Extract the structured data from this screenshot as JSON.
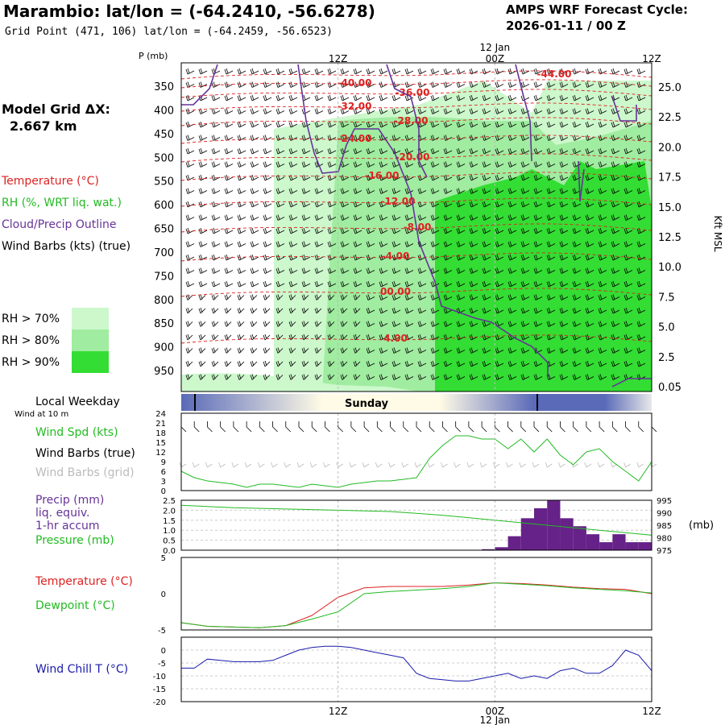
{
  "header": {
    "title": "Marambio:  lat/lon = (-64.2410, -56.6278)",
    "subtitle": "Grid Point (471, 106) lat/lon = (-64.2459, -56.6523)",
    "cycle_line1": "AMPS WRF Forecast Cycle:",
    "cycle_line2": "2026-01-11 / 00  Z"
  },
  "left_panel": {
    "grid_label": "Model Grid ΔX:",
    "grid_value": "2.667 km",
    "legend_temperature": "Temperature (°C)",
    "legend_rh": "RH (%, WRT liq. wat.)",
    "legend_cloud": "Cloud/Precip Outline",
    "legend_wind": "Wind Barbs (kts) (true)",
    "rh70": "RH > 70%",
    "rh80": "RH > 80%",
    "rh90": "RH > 90%",
    "rh_colors": [
      "#ccf8cc",
      "#a0eca0",
      "#33dd33"
    ],
    "local_weekday": "Local Weekday",
    "wind_10m": "Wind at 10 m",
    "wind_spd": "Wind Spd (kts)",
    "wind_barbs_true": "Wind Barbs (true)",
    "wind_barbs_grid": "Wind Barbs (grid)",
    "precip1": "Precip (mm)",
    "precip2": "liq. equiv.",
    "precip3": "1-hr accum",
    "pressure": "Pressure (mb)",
    "temperature2": "Temperature (°C)",
    "dewpoint": "Dewpoint (°C)",
    "windchill": "Wind Chill T (°C)"
  },
  "axes": {
    "p_label": "P (mb)",
    "time_ticks": [
      "12Z",
      "00Z",
      "12Z"
    ],
    "date_label": "12 Jan",
    "weekday": "Sunday",
    "right_axis_label": "Kft MSL",
    "pressure_unit": "(mb)"
  },
  "chart_data": [
    {
      "type": "heatmap",
      "title": "",
      "y_pressure_ticks": [
        350,
        400,
        450,
        500,
        550,
        600,
        650,
        700,
        750,
        800,
        850,
        900,
        950
      ],
      "y_height_kft_ticks": [
        "25.0",
        "22.5",
        "20.0",
        "17.5",
        "15.0",
        "12.5",
        "10.0",
        "7.5",
        "5.0",
        "2.5",
        "0.05"
      ],
      "temperature_contours": [
        {
          "label": "-44.00",
          "value": -44
        },
        {
          "label": "-40.00",
          "value": -40
        },
        {
          "label": "-36.00",
          "value": -36
        },
        {
          "label": "-32.00",
          "value": -32
        },
        {
          "label": "-28.00",
          "value": -28
        },
        {
          "label": "-24.00",
          "value": -24
        },
        {
          "label": "-20.00",
          "value": -20
        },
        {
          "label": "-16.00",
          "value": -16
        },
        {
          "label": "-12.00",
          "value": -12
        },
        {
          "label": "-8.00",
          "value": -8
        },
        {
          "label": "-4.00",
          "value": -4
        },
        {
          "label": "00.00",
          "value": 0
        },
        {
          "label": "4.00",
          "value": 4
        }
      ]
    },
    {
      "type": "line",
      "title": "Wind Spd (kts)",
      "y_ticks": [
        0,
        3,
        6,
        9,
        12,
        15,
        18,
        21,
        24
      ],
      "ylim": [
        0,
        24
      ],
      "x_hours": [
        0,
        1,
        2,
        3,
        4,
        5,
        6,
        7,
        8,
        9,
        10,
        11,
        12,
        13,
        14,
        15,
        16,
        17,
        18,
        19,
        20,
        21,
        22,
        23,
        24,
        25,
        26,
        27,
        28,
        29,
        30,
        31,
        32,
        33,
        34,
        35,
        36
      ],
      "series": [
        {
          "name": "Wind Spd (kts)",
          "color": "#22bb22",
          "values": [
            6,
            4,
            3,
            2.5,
            2,
            1,
            2,
            2,
            1.5,
            1,
            2,
            1.5,
            1,
            2,
            2.5,
            3,
            3,
            3.5,
            4,
            10,
            14,
            17,
            17,
            16,
            16,
            13,
            16,
            12,
            16,
            11,
            8,
            12,
            13,
            9,
            6,
            3,
            9
          ]
        }
      ]
    },
    {
      "type": "bar",
      "title": "Precip (mm) / Pressure (mb)",
      "y_ticks_left": [
        "0.0",
        "0.5",
        "1.0",
        "1.5",
        "2.0",
        "2.5"
      ],
      "y_ticks_right": [
        "975",
        "980",
        "985",
        "990",
        "995"
      ],
      "ylim_precip": [
        0,
        2.5
      ],
      "ylim_pressure": [
        975,
        995
      ],
      "precip_hours": [
        21,
        22,
        23,
        24,
        25,
        26,
        27,
        28,
        29,
        30,
        31,
        32,
        33,
        34,
        35,
        36
      ],
      "precip_values": [
        0.02,
        0.02,
        0.02,
        0.05,
        0.15,
        0.7,
        1.6,
        2.1,
        2.5,
        1.6,
        1.2,
        0.8,
        0.4,
        0.8,
        0.4,
        0.4
      ],
      "pressure_hours": [
        0,
        4,
        8,
        12,
        16,
        20,
        24,
        28,
        32,
        36
      ],
      "pressure_values": [
        993,
        992,
        991.5,
        991,
        990.5,
        989,
        987,
        985,
        983,
        981
      ]
    },
    {
      "type": "line",
      "title": "Temperature / Dewpoint (°C)",
      "y_ticks": [
        "5",
        "0",
        "-5"
      ],
      "ylim": [
        -5,
        5
      ],
      "x_hours": [
        0,
        2,
        4,
        6,
        8,
        10,
        12,
        14,
        16,
        18,
        20,
        22,
        24,
        26,
        28,
        30,
        32,
        34,
        36
      ],
      "series": [
        {
          "name": "Temperature (°C)",
          "color": "#dd2222",
          "values": [
            -4,
            -4.5,
            -4.6,
            -4.7,
            -4.4,
            -3,
            -0.5,
            0.8,
            1,
            1,
            1,
            1.2,
            1.5,
            1.4,
            1.2,
            0.9,
            0.7,
            0.6,
            0
          ]
        },
        {
          "name": "Dewpoint (°C)",
          "color": "#22bb22",
          "values": [
            -4,
            -4.5,
            -4.6,
            -4.7,
            -4.4,
            -3.5,
            -2.5,
            0,
            0.3,
            0.5,
            0.7,
            1,
            1.5,
            1.3,
            1.1,
            0.8,
            0.6,
            0.4,
            0.1
          ]
        }
      ]
    },
    {
      "type": "line",
      "title": "Wind Chill T (°C)",
      "y_ticks": [
        "0",
        "-5",
        "-10",
        "-15",
        "-20"
      ],
      "ylim": [
        -20,
        5
      ],
      "x_hours": [
        0,
        1,
        2,
        3,
        4,
        5,
        6,
        7,
        8,
        9,
        10,
        11,
        12,
        13,
        14,
        15,
        16,
        17,
        18,
        19,
        20,
        21,
        22,
        23,
        24,
        25,
        26,
        27,
        28,
        29,
        30,
        31,
        32,
        33,
        34,
        35,
        36
      ],
      "series": [
        {
          "name": "Wind Chill T (°C)",
          "color": "#1a1aaa",
          "values": [
            -7,
            -7,
            -3.5,
            -4,
            -4.5,
            -4.5,
            -4.5,
            -4,
            -2,
            0,
            1,
            1.5,
            1.5,
            1,
            0,
            -1,
            -2,
            -3,
            -9,
            -11,
            -11.5,
            -12,
            -12,
            -11,
            -10,
            -9,
            -11,
            -10,
            -11,
            -8,
            -7,
            -9,
            -9,
            -6,
            0,
            -2,
            -8
          ]
        }
      ]
    }
  ]
}
